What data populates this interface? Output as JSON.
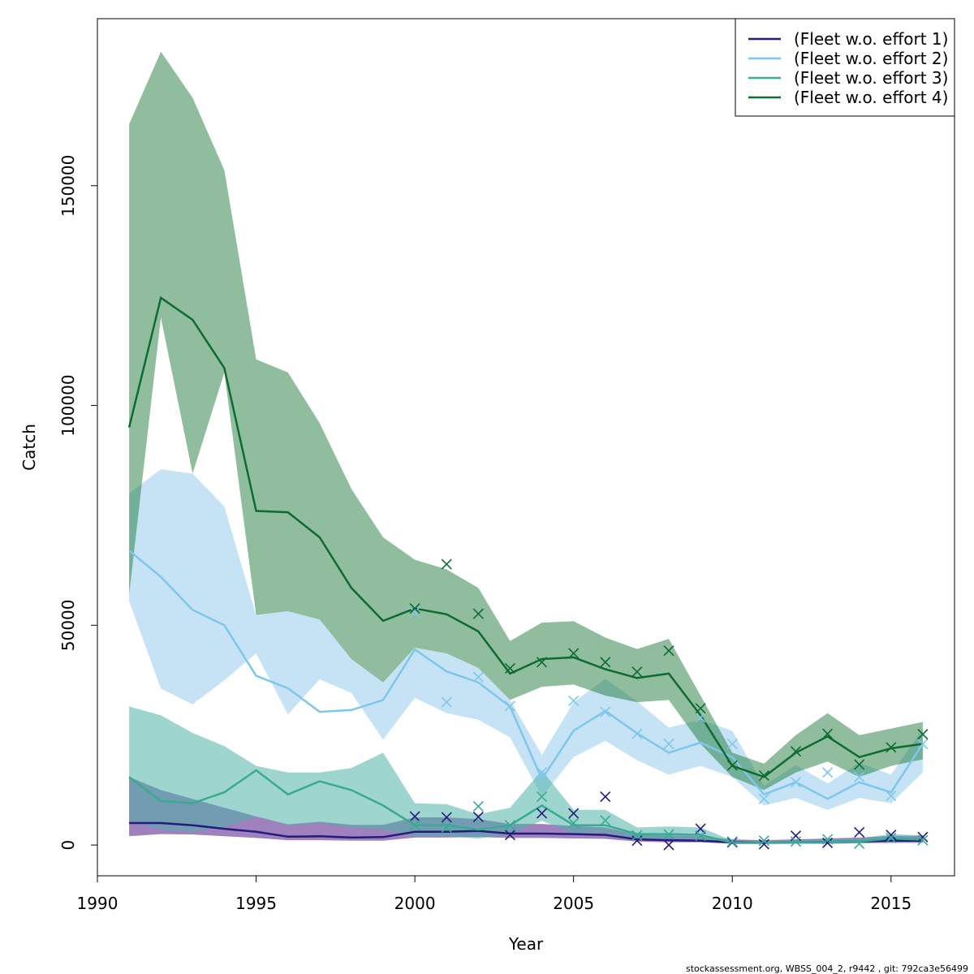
{
  "footer": "stockassessment.org, WBSS_004_2, r9442 , git: 792ca3e56499",
  "chart_data": {
    "type": "line",
    "xlabel": "Year",
    "ylabel": "Catch",
    "xlim": [
      1990,
      2017
    ],
    "ylim": [
      -7000,
      188000
    ],
    "x_ticks": [
      1990,
      1995,
      2000,
      2005,
      2010,
      2015
    ],
    "y_ticks": [
      0,
      50000,
      100000,
      150000
    ],
    "grid": false,
    "legend_position": "top-right",
    "years": [
      1991,
      1992,
      1993,
      1994,
      1995,
      1996,
      1997,
      1998,
      1999,
      2000,
      2001,
      2002,
      2003,
      2004,
      2005,
      2006,
      2007,
      2008,
      2009,
      2010,
      2011,
      2012,
      2013,
      2014,
      2015,
      2016
    ],
    "series": [
      {
        "name": "(Fleet w.o. effort 1)",
        "line_color": "#241c7a",
        "band_color": "#6a3d9a",
        "band_opacity": 0.65,
        "fit": [
          5000,
          5000,
          4500,
          3700,
          3000,
          1900,
          2000,
          1700,
          1800,
          3000,
          3000,
          3200,
          2600,
          2600,
          2500,
          2300,
          1300,
          1100,
          1000,
          600,
          500,
          600,
          700,
          800,
          1000,
          1000
        ],
        "lower": [
          2000,
          2500,
          2400,
          2000,
          1600,
          1100,
          1100,
          1000,
          1000,
          1700,
          1700,
          1800,
          1600,
          1600,
          1500,
          1400,
          800,
          600,
          600,
          300,
          300,
          300,
          300,
          400,
          500,
          500
        ],
        "upper": [
          15500,
          12500,
          10500,
          8500,
          6500,
          4700,
          5300,
          4600,
          4600,
          6300,
          6300,
          5900,
          4800,
          4800,
          4300,
          4000,
          2400,
          2200,
          2000,
          1300,
          1100,
          1300,
          1500,
          1700,
          2100,
          2100
        ],
        "obs_x": [
          2000,
          2001,
          2002,
          2003,
          2004,
          2005,
          2006,
          2007,
          2008,
          2009,
          2010,
          2011,
          2012,
          2013,
          2014,
          2015,
          2016
        ],
        "obs_y": [
          6500,
          6300,
          6400,
          2300,
          7200,
          7200,
          11000,
          1000,
          0,
          3700,
          600,
          200,
          2100,
          500,
          2900,
          2300,
          1800
        ]
      },
      {
        "name": "(Fleet w.o. effort 2)",
        "line_color": "#7fc6ec",
        "band_color": "#a6d4f0",
        "band_opacity": 0.65,
        "fit": [
          67000,
          61000,
          53500,
          50000,
          38500,
          35700,
          30300,
          30700,
          33000,
          44500,
          39500,
          37000,
          31500,
          15000,
          26000,
          30500,
          25400,
          21000,
          23300,
          20000,
          11500,
          14300,
          10500,
          14300,
          12000,
          23000
        ],
        "lower": [
          55500,
          35600,
          32000,
          37500,
          43600,
          29700,
          37700,
          34600,
          24000,
          33500,
          30000,
          28500,
          24500,
          11000,
          20000,
          23700,
          19300,
          16000,
          18000,
          15500,
          9000,
          10700,
          8000,
          10700,
          9500,
          16500
        ],
        "upper": [
          80000,
          85500,
          84500,
          77000,
          52200,
          53200,
          51300,
          42300,
          37000,
          44900,
          43600,
          40300,
          33000,
          20500,
          32500,
          37800,
          32700,
          26700,
          28500,
          26000,
          13500,
          18200,
          14000,
          18700,
          16000,
          26500
        ],
        "obs_x": [
          2000,
          2001,
          2002,
          2003,
          2004,
          2005,
          2006,
          2007,
          2008,
          2009,
          2010,
          2011,
          2012,
          2013,
          2014,
          2015,
          2016
        ],
        "obs_y": [
          53000,
          32500,
          38200,
          31600,
          16500,
          32800,
          30300,
          25300,
          23000,
          29000,
          23000,
          10500,
          14300,
          16500,
          15500,
          11200,
          23000
        ]
      },
      {
        "name": "(Fleet w.o. effort 3)",
        "line_color": "#3aaa93",
        "band_color": "#4fb3a7",
        "band_opacity": 0.55,
        "fit": [
          15500,
          10000,
          9500,
          12000,
          17000,
          11500,
          14500,
          12500,
          9000,
          4500,
          4500,
          3500,
          4500,
          9000,
          4500,
          4500,
          2500,
          2500,
          2300,
          500,
          500,
          600,
          700,
          800,
          1500,
          1200
        ],
        "lower": [
          5500,
          3500,
          3000,
          4000,
          6500,
          4500,
          5000,
          4000,
          3500,
          2000,
          2000,
          1500,
          2500,
          5500,
          2700,
          2700,
          1300,
          1300,
          1100,
          200,
          200,
          300,
          300,
          400,
          800,
          600
        ],
        "upper": [
          31500,
          29500,
          25500,
          22500,
          18000,
          16500,
          16500,
          17500,
          21000,
          9500,
          9300,
          7000,
          8500,
          17000,
          8000,
          8000,
          4000,
          4200,
          4000,
          1000,
          1000,
          1100,
          1300,
          1500,
          2500,
          2200
        ],
        "obs_x": [
          2000,
          2001,
          2002,
          2003,
          2004,
          2005,
          2006,
          2007,
          2008,
          2009,
          2010,
          2011,
          2012,
          2013,
          2014,
          2015,
          2016
        ],
        "obs_y": [
          4500,
          4000,
          8800,
          4500,
          11000,
          5000,
          5600,
          2200,
          2400,
          2100,
          800,
          1000,
          800,
          1300,
          300,
          1600,
          1100
        ]
      },
      {
        "name": "(Fleet w.o. effort 4)",
        "line_color": "#0e6b31",
        "band_color": "#1f7c3e",
        "band_opacity": 0.5,
        "fit": [
          95000,
          124500,
          119500,
          108500,
          76000,
          75700,
          70000,
          58500,
          51000,
          53800,
          52500,
          48600,
          39000,
          42300,
          42700,
          40000,
          38000,
          39000,
          29500,
          18000,
          15500,
          21000,
          24700,
          20000,
          22000,
          23000
        ],
        "lower": [
          57000,
          120000,
          84500,
          107500,
          52300,
          53200,
          51300,
          42300,
          37000,
          44900,
          43600,
          40300,
          33000,
          36000,
          36500,
          34000,
          32500,
          33000,
          23000,
          15500,
          12500,
          16500,
          19000,
          15500,
          18000,
          19500
        ],
        "upper": [
          164000,
          180500,
          170000,
          153500,
          110500,
          107500,
          96000,
          81000,
          70000,
          64900,
          62700,
          58500,
          46400,
          50600,
          50900,
          47200,
          44600,
          46900,
          34000,
          21000,
          18500,
          25000,
          30000,
          25000,
          26500,
          28000
        ],
        "obs_x": [
          2000,
          2001,
          2002,
          2003,
          2004,
          2005,
          2006,
          2007,
          2008,
          2009,
          2010,
          2011,
          2012,
          2013,
          2014,
          2015,
          2016
        ],
        "obs_y": [
          53800,
          63900,
          52600,
          40200,
          41600,
          43600,
          41600,
          39400,
          44200,
          31100,
          18100,
          15800,
          21300,
          25300,
          18300,
          22200,
          25200
        ]
      }
    ]
  }
}
